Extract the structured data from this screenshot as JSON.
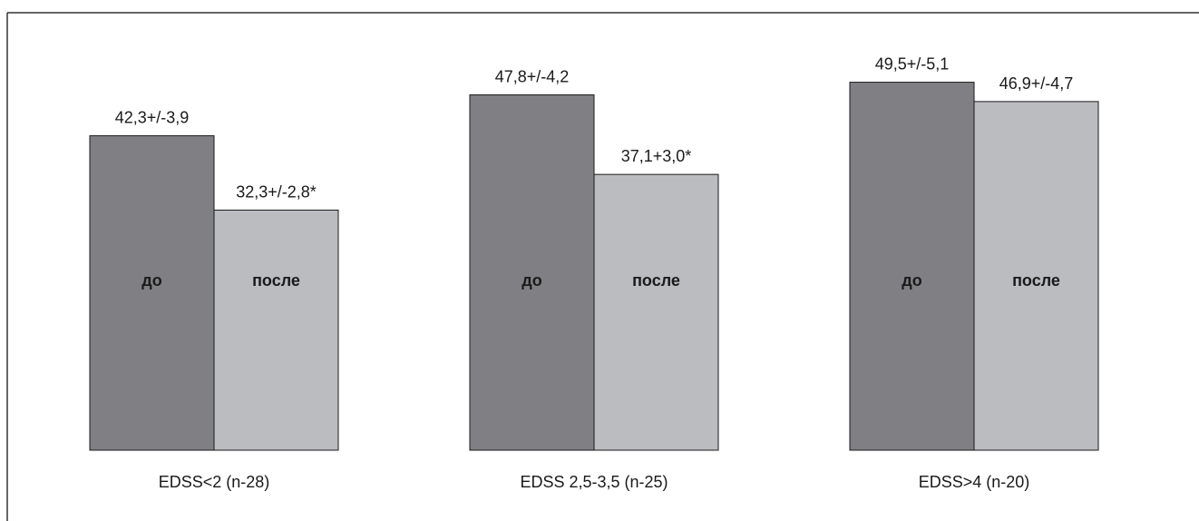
{
  "chart_data": {
    "type": "bar",
    "title": "",
    "xlabel": "",
    "ylabel": "",
    "ylim": [
      0,
      55
    ],
    "grid": false,
    "legend": "none",
    "categories": [
      "EDSS<2 (n-28)",
      "EDSS 2,5-3,5 (n-25)",
      "EDSS>4 (n-20)"
    ],
    "series": [
      {
        "name": "до",
        "color": "#808084",
        "values": [
          42.3,
          47.8,
          49.5
        ],
        "labels": [
          "42,3+/-3,9",
          "47,8+/-4,2",
          "49,5+/-5,1"
        ]
      },
      {
        "name": "после",
        "color": "#bbbcc0",
        "values": [
          32.3,
          37.1,
          46.9
        ],
        "labels": [
          "32,3+/-2,8*",
          "37,1+3,0*",
          "46,9+/-4,7"
        ]
      }
    ]
  }
}
